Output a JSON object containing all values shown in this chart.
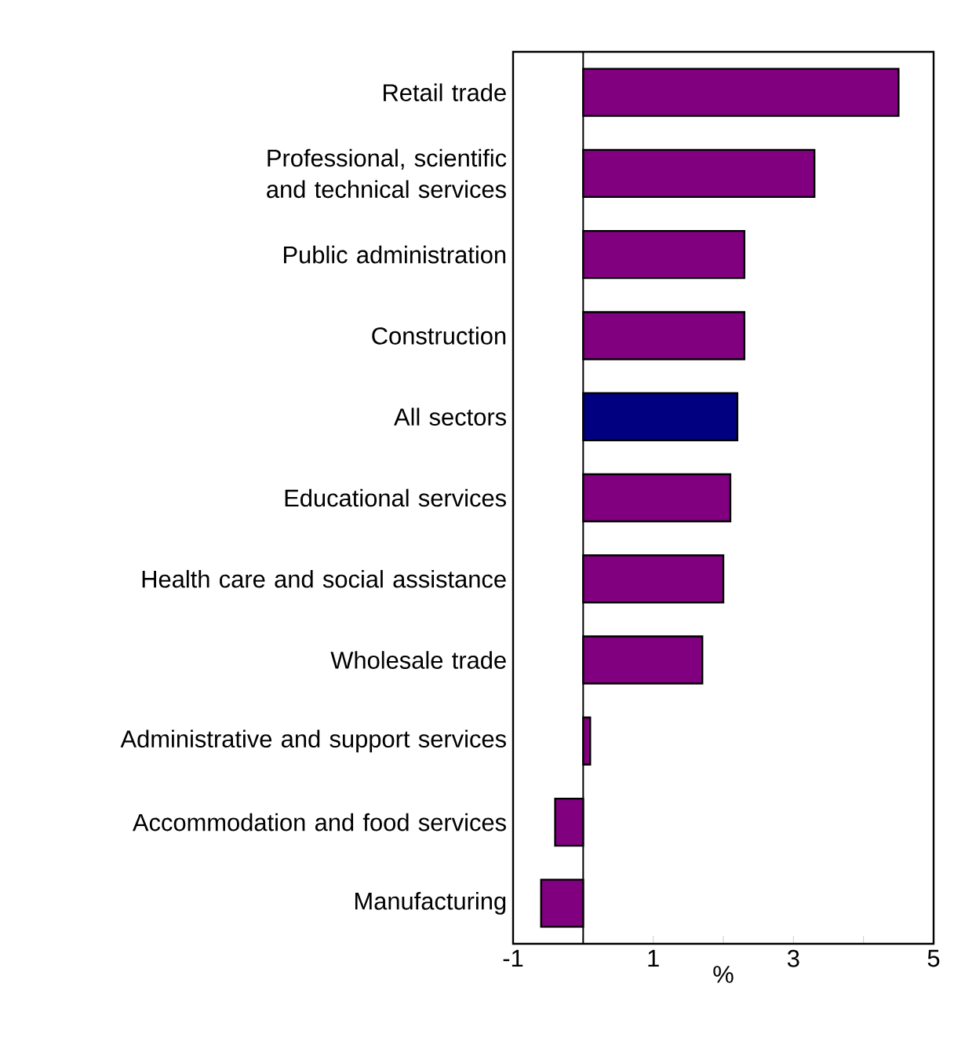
{
  "chart_data": {
    "type": "bar",
    "orientation": "horizontal",
    "xlabel": "%",
    "categories": [
      "Retail trade",
      "Professional, scientific and technical services",
      "Public administration",
      "Construction",
      "All sectors",
      "Educational services",
      "Health care and social assistance",
      "Wholesale trade",
      "Administrative and support services",
      "Accommodation and food services",
      "Manufacturing"
    ],
    "values": [
      4.5,
      3.3,
      2.3,
      2.3,
      2.2,
      2.1,
      2.0,
      1.7,
      0.1,
      -0.4,
      -0.6
    ],
    "colors": [
      "#800080",
      "#800080",
      "#800080",
      "#800080",
      "#000080",
      "#800080",
      "#800080",
      "#800080",
      "#800080",
      "#800080",
      "#800080"
    ],
    "xlim": [
      -1,
      5
    ],
    "xticks": [
      -1,
      {
        "value": 0,
        "label": null
      },
      1,
      {
        "value": 2,
        "label": null
      },
      3,
      {
        "value": 4,
        "label": null
      },
      5
    ],
    "ref_lines": [
      {
        "axis": "x",
        "value": 0,
        "color": "#000000"
      }
    ],
    "grid": false
  }
}
